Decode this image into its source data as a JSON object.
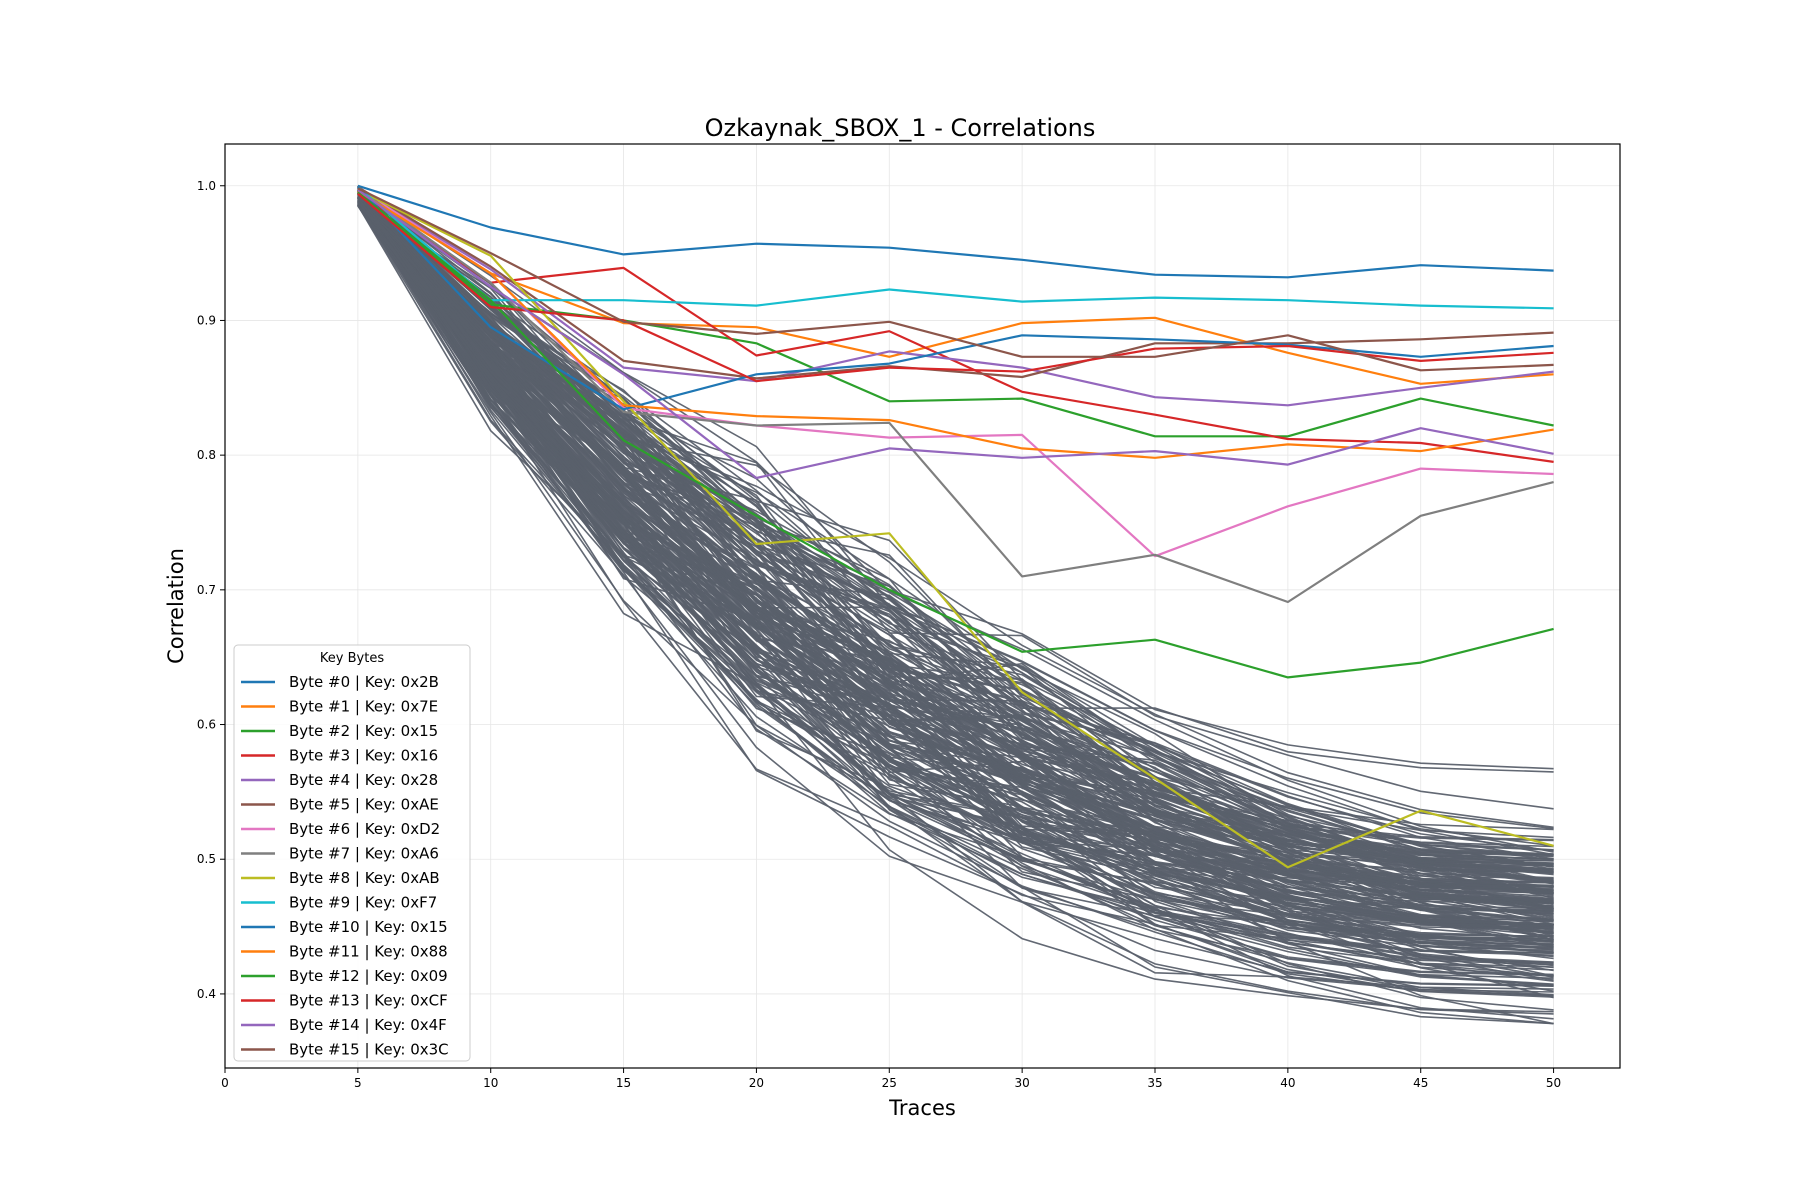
{
  "chart_data": {
    "type": "line",
    "title": "Ozkaynak_SBOX_1 - Correlations",
    "xlabel": "Traces",
    "ylabel": "Correlation",
    "xlim": [
      0,
      52.5
    ],
    "ylim": [
      0.345,
      1.031
    ],
    "x_ticks": [
      0,
      5,
      10,
      15,
      20,
      25,
      30,
      35,
      40,
      45,
      50
    ],
    "y_ticks": [
      0.4,
      0.5,
      0.6,
      0.7,
      0.8,
      0.9,
      1.0
    ],
    "y_tick_labels": [
      "0.4",
      "0.5",
      "0.6",
      "0.7",
      "0.8",
      "0.9",
      "1.0"
    ],
    "grid": true,
    "legend": {
      "title": "Key Bytes",
      "placement": "lower-left"
    },
    "x": [
      5,
      10,
      15,
      20,
      25,
      30,
      35,
      40,
      45,
      50
    ],
    "series": [
      {
        "name": "Byte #0 | Key: 0x2B",
        "color": "#1f77b4",
        "values": [
          1.0,
          0.969,
          0.949,
          0.957,
          0.954,
          0.945,
          0.934,
          0.932,
          0.941,
          0.937
        ]
      },
      {
        "name": "Byte #1 | Key: 0x7E",
        "color": "#ff7f0e",
        "values": [
          0.997,
          0.935,
          0.898,
          0.895,
          0.873,
          0.898,
          0.902,
          0.876,
          0.853,
          0.86
        ]
      },
      {
        "name": "Byte #2 | Key: 0x15",
        "color": "#2ca02c",
        "values": [
          0.996,
          0.912,
          0.9,
          0.883,
          0.84,
          0.842,
          0.814,
          0.814,
          0.842,
          0.822
        ]
      },
      {
        "name": "Byte #3 | Key: 0x16",
        "color": "#d62728",
        "values": [
          0.995,
          0.928,
          0.939,
          0.874,
          0.892,
          0.847,
          0.83,
          0.812,
          0.809,
          0.795
        ]
      },
      {
        "name": "Byte #4 | Key: 0x28",
        "color": "#9467bd",
        "values": [
          0.998,
          0.938,
          0.865,
          0.855,
          0.877,
          0.865,
          0.843,
          0.837,
          0.85,
          0.862
        ]
      },
      {
        "name": "Byte #5 | Key: 0xAE",
        "color": "#8c564b",
        "values": [
          0.999,
          0.94,
          0.87,
          0.857,
          0.866,
          0.858,
          0.883,
          0.883,
          0.886,
          0.891
        ]
      },
      {
        "name": "Byte #6 | Key: 0xD2",
        "color": "#e377c2",
        "values": [
          0.998,
          0.935,
          0.835,
          0.822,
          0.813,
          0.815,
          0.725,
          0.762,
          0.79,
          0.786
        ]
      },
      {
        "name": "Byte #7 | Key: 0xA6",
        "color": "#7f7f7f",
        "values": [
          0.998,
          0.928,
          0.832,
          0.822,
          0.824,
          0.71,
          0.726,
          0.691,
          0.755,
          0.78
        ]
      },
      {
        "name": "Byte #8 | Key: 0xAB",
        "color": "#bcbd22",
        "values": [
          0.997,
          0.948,
          0.84,
          0.734,
          0.742,
          0.624,
          0.56,
          0.494,
          0.536,
          0.51
        ]
      },
      {
        "name": "Byte #9 | Key: 0xF7",
        "color": "#17becf",
        "values": [
          0.999,
          0.915,
          0.915,
          0.911,
          0.923,
          0.914,
          0.917,
          0.915,
          0.911,
          0.909
        ]
      },
      {
        "name": "Byte #10 | Key: 0x15",
        "color": "#1f77b4",
        "values": [
          0.999,
          0.895,
          0.834,
          0.86,
          0.868,
          0.889,
          0.886,
          0.882,
          0.873,
          0.881
        ]
      },
      {
        "name": "Byte #11 | Key: 0x88",
        "color": "#ff7f0e",
        "values": [
          0.996,
          0.935,
          0.837,
          0.829,
          0.826,
          0.805,
          0.798,
          0.808,
          0.803,
          0.819
        ]
      },
      {
        "name": "Byte #12 | Key: 0x09",
        "color": "#2ca02c",
        "values": [
          0.995,
          0.915,
          0.811,
          0.755,
          0.7,
          0.654,
          0.663,
          0.635,
          0.646,
          0.671
        ]
      },
      {
        "name": "Byte #13 | Key: 0xCF",
        "color": "#d62728",
        "values": [
          0.994,
          0.91,
          0.9,
          0.855,
          0.865,
          0.862,
          0.879,
          0.881,
          0.87,
          0.876
        ]
      },
      {
        "name": "Byte #14 | Key: 0x4F",
        "color": "#9467bd",
        "values": [
          0.997,
          0.925,
          0.86,
          0.783,
          0.805,
          0.798,
          0.803,
          0.793,
          0.82,
          0.801
        ]
      },
      {
        "name": "Byte #15 | Key: 0x3C",
        "color": "#8c564b",
        "values": [
          0.998,
          0.95,
          0.899,
          0.89,
          0.899,
          0.873,
          0.873,
          0.889,
          0.863,
          0.867
        ]
      }
    ],
    "wrong_key_guesses": {
      "color": "#5a606b",
      "count": 240,
      "approx_start": [
        0.985,
        1.0
      ],
      "approx_envelope_at_50": [
        0.378,
        0.625
      ],
      "approx_mean_at_50": 0.46
    }
  }
}
